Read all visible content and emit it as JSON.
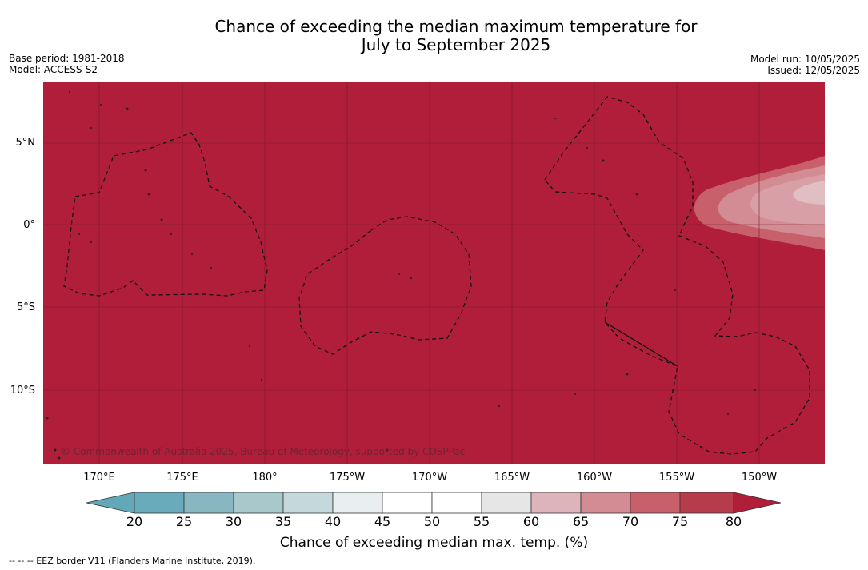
{
  "title_line1": "Chance of exceeding the median maximum temperature for",
  "title_line2": "July to September 2025",
  "base_period": "Base period: 1981-2018",
  "model": "Model: ACCESS-S2",
  "model_run": "Model run: 10/05/2025",
  "issued": "Issued: 12/05/2025",
  "copyright": "© Commonwealth of Australia 2025, Bureau of Meteorology, supported by COSPPac",
  "lat_labels": [
    "5°N",
    "0°",
    "5°S",
    "10°S"
  ],
  "lon_labels": [
    "170°E",
    "175°E",
    "180°",
    "175°W",
    "170°W",
    "165°W",
    "160°W",
    "155°W",
    "150°W"
  ],
  "colorbar": {
    "ticks": [
      "20",
      "25",
      "30",
      "35",
      "40",
      "45",
      "50",
      "55",
      "60",
      "65",
      "70",
      "75",
      "80"
    ],
    "colors": [
      "#63a8b8",
      "#6aabbb",
      "#88b6c1",
      "#a8c8cc",
      "#c5d8dc",
      "#e9eef0",
      "#ffffff",
      "#ffffff",
      "#e6e6e6",
      "#ddb4ba",
      "#d38c93",
      "#c8606c",
      "#b63c4b",
      "#b01e3a"
    ],
    "label": "Chance of exceeding median max. temp. (%)"
  },
  "background_color": "#b01e3a",
  "footer": "--  --  -- EEZ border V11 (Flanders Marine Institute, 2019)."
}
